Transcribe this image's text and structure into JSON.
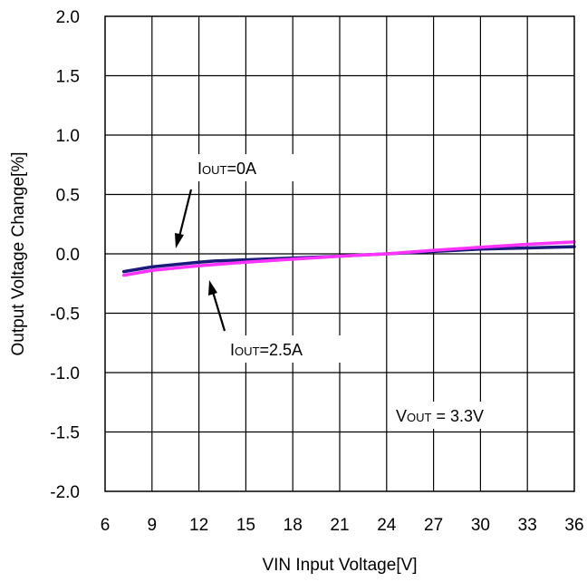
{
  "chart_data": {
    "type": "line",
    "xlabel": "VIN Input Voltage[V]",
    "ylabel": "Output Voltage Change[%]",
    "xlim": [
      6,
      36
    ],
    "ylim": [
      -2.0,
      2.0
    ],
    "x_ticks": [
      "6",
      "9",
      "12",
      "15",
      "18",
      "21",
      "24",
      "27",
      "30",
      "33",
      "36"
    ],
    "y_ticks": [
      "2.0",
      "1.5",
      "1.0",
      "0.5",
      "0.0",
      "-0.5",
      "-1.0",
      "-1.5",
      "-2.0"
    ],
    "grid": true,
    "series": [
      {
        "name": "IOUT=0A",
        "color": "#1a1a7a",
        "x": [
          7.2,
          9,
          12,
          13,
          15,
          18,
          21,
          24,
          27,
          30,
          33,
          36
        ],
        "y": [
          -0.15,
          -0.11,
          -0.07,
          -0.06,
          -0.05,
          -0.035,
          -0.02,
          0.0,
          0.02,
          0.04,
          0.05,
          0.06
        ]
      },
      {
        "name": "IOUT=2.5A",
        "color": "#ff33ff",
        "x": [
          7.2,
          9,
          12,
          15,
          18,
          21,
          24,
          27,
          30,
          33,
          36
        ],
        "y": [
          -0.18,
          -0.14,
          -0.1,
          -0.07,
          -0.045,
          -0.02,
          0.0,
          0.03,
          0.055,
          0.08,
          0.1
        ]
      }
    ],
    "annotations": [
      {
        "id": "iout0",
        "prefix": "I",
        "sub": "OUT",
        "suffix": "=0A"
      },
      {
        "id": "iout25",
        "prefix": "I",
        "sub": "OUT",
        "suffix": "=2.5A"
      },
      {
        "id": "vout",
        "prefix": "V",
        "sub": "OUT",
        "suffix": " = 3.3V"
      }
    ]
  }
}
